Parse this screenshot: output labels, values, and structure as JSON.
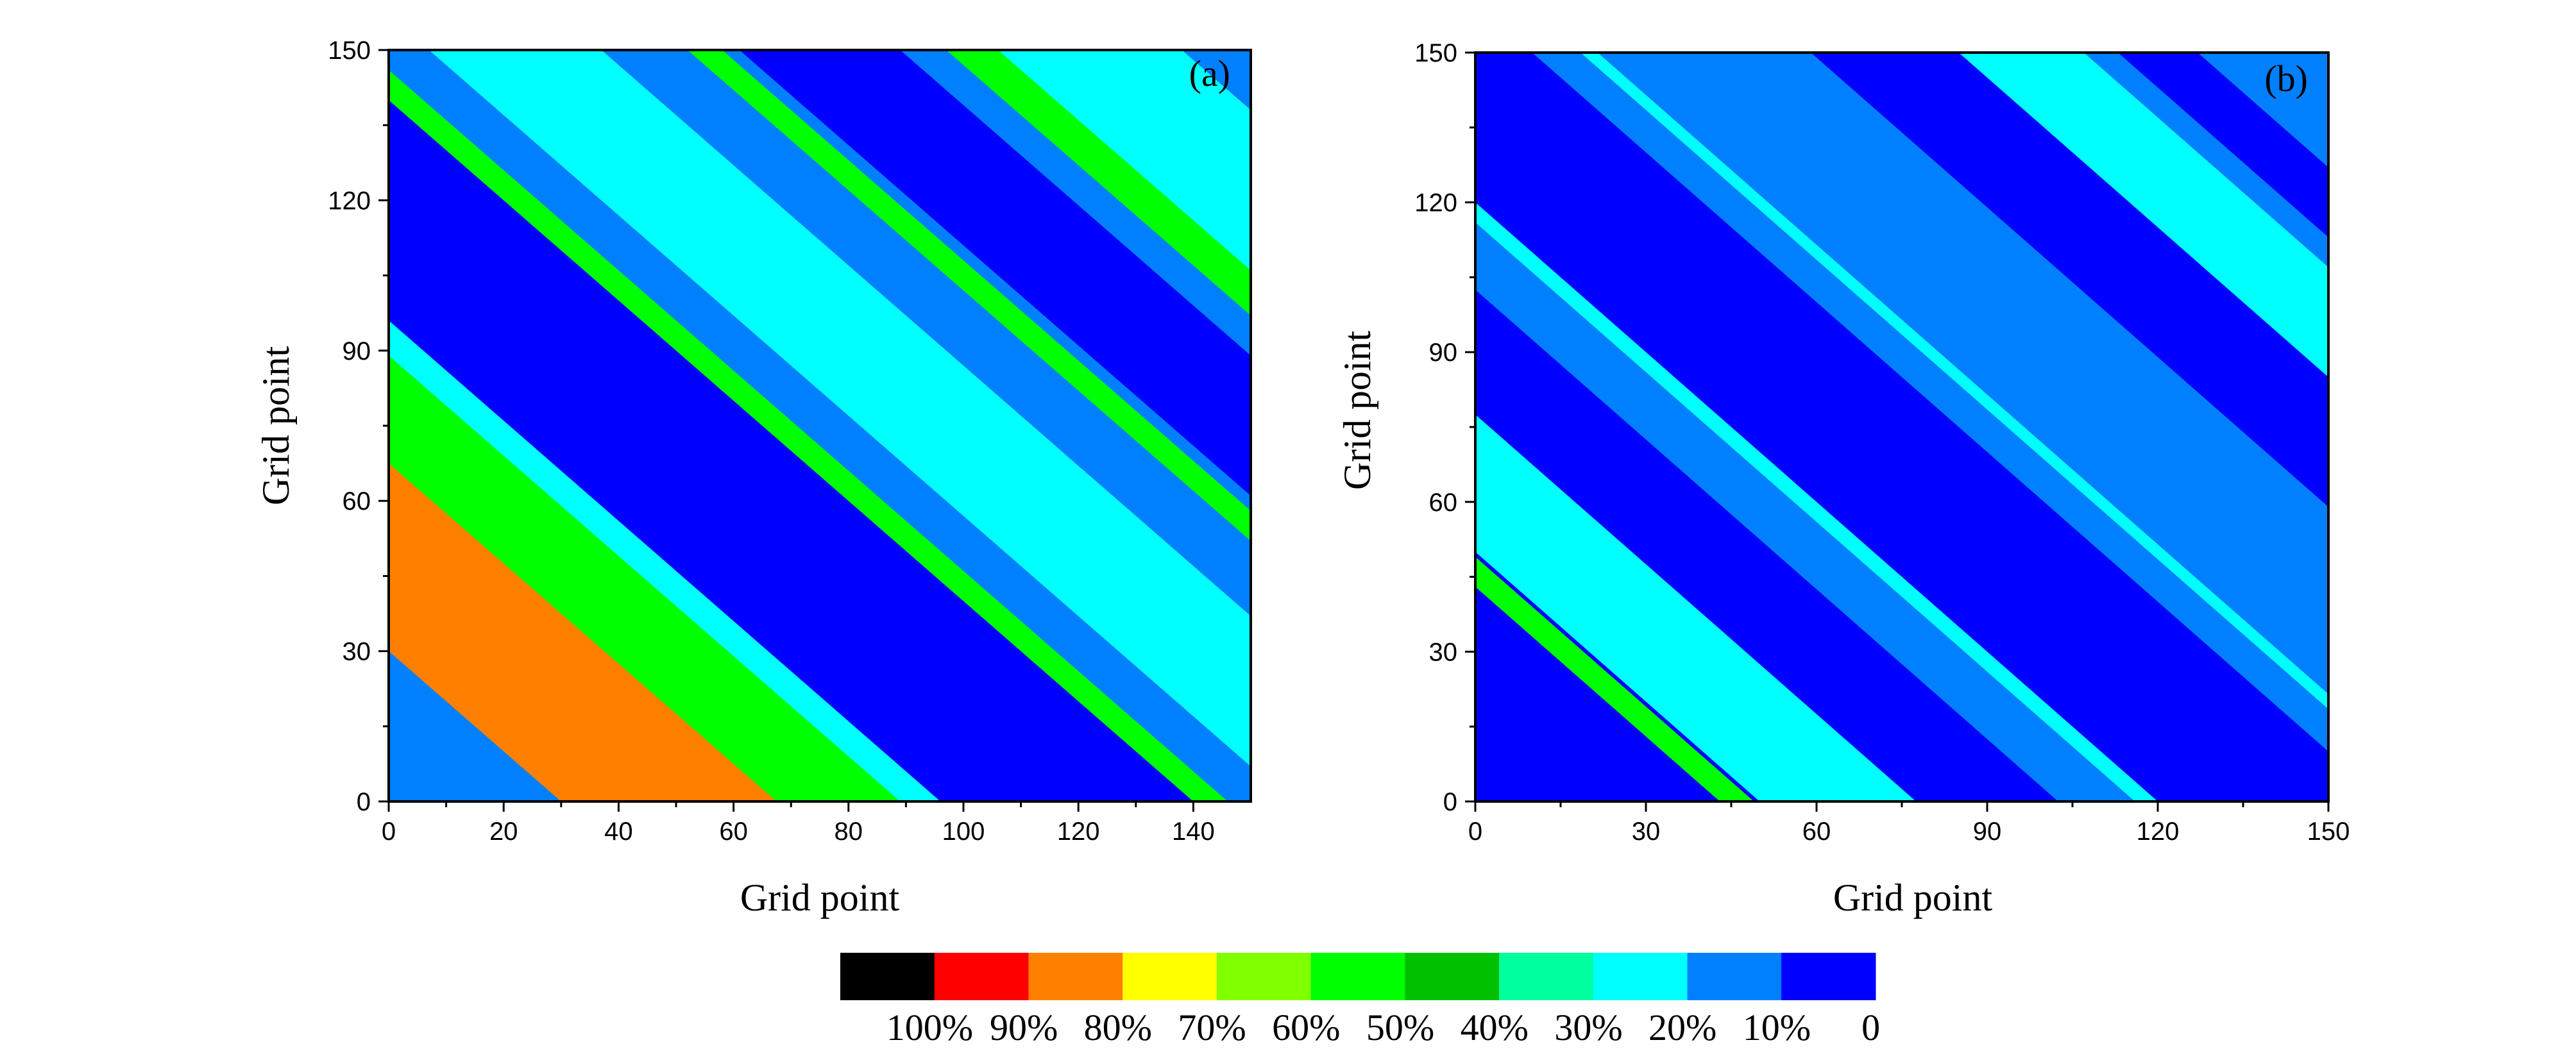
{
  "chart_data": [
    {
      "type": "heatmap",
      "panel_label": "(a)",
      "xlabel": "Grid point",
      "ylabel": "Grid point",
      "xlim": [
        0,
        150
      ],
      "ylim": [
        0,
        150
      ],
      "xticks": [
        0,
        20,
        40,
        60,
        80,
        100,
        120,
        140
      ],
      "yticks": [
        0,
        30,
        60,
        90,
        120,
        150
      ],
      "background_level": "10%",
      "bands": [
        {
          "x_intercept": 60,
          "width": 60,
          "level": "80%"
        },
        {
          "x_intercept": 80,
          "width": 25,
          "level": "50%"
        },
        {
          "x_intercept": 96,
          "width": 14,
          "level": "20%"
        },
        {
          "x_intercept": 118,
          "width": 44,
          "level": "0"
        },
        {
          "x_intercept": 143,
          "width": 6,
          "level": "50%"
        },
        {
          "x_intercept": 172,
          "width": 30,
          "level": "20%"
        },
        {
          "x_intercept": 205,
          "width": 6,
          "level": "50%"
        },
        {
          "x_intercept": 225,
          "width": 28,
          "level": "0"
        },
        {
          "x_intercept": 252,
          "width": 10,
          "level": "50%"
        },
        {
          "x_intercept": 272,
          "width": 32,
          "level": "20%"
        }
      ]
    },
    {
      "type": "heatmap",
      "panel_label": "(b)",
      "xlabel": "Grid point",
      "ylabel": "Grid point",
      "xlim": [
        0,
        150
      ],
      "ylim": [
        0,
        150
      ],
      "xticks": [
        0,
        30,
        60,
        90,
        120,
        150
      ],
      "yticks": [
        0,
        30,
        60,
        90,
        120,
        150
      ],
      "background_level": "10%",
      "bands": [
        {
          "x_intercept": 30,
          "width": 60,
          "level": "0"
        },
        {
          "x_intercept": 46,
          "width": 6,
          "level": "50%"
        },
        {
          "x_intercept": 65,
          "width": 30,
          "level": "20%"
        },
        {
          "x_intercept": 90,
          "width": 25,
          "level": "0"
        },
        {
          "x_intercept": 120,
          "width": 8,
          "level": "20%"
        },
        {
          "x_intercept": 140,
          "width": 40,
          "level": "0"
        },
        {
          "x_intercept": 170,
          "width": 3,
          "level": "20%"
        },
        {
          "x_intercept": 222,
          "width": 26,
          "level": "0"
        },
        {
          "x_intercept": 246,
          "width": 22,
          "level": "20%"
        },
        {
          "x_intercept": 270,
          "width": 14,
          "level": "0"
        }
      ]
    }
  ],
  "colorbar": {
    "levels": [
      {
        "label": "100%",
        "color": "#000000"
      },
      {
        "label": "90%",
        "color": "#ff0000"
      },
      {
        "label": "80%",
        "color": "#ff8000"
      },
      {
        "label": "70%",
        "color": "#ffff00"
      },
      {
        "label": "60%",
        "color": "#80ff00"
      },
      {
        "label": "50%",
        "color": "#00ff00"
      },
      {
        "label": "40%",
        "color": "#00c000"
      },
      {
        "label": "30%",
        "color": "#00ff9f"
      },
      {
        "label": "20%",
        "color": "#00ffff"
      },
      {
        "label": "10%",
        "color": "#0080ff"
      },
      {
        "label": "0",
        "color": "#0000ff"
      }
    ]
  }
}
